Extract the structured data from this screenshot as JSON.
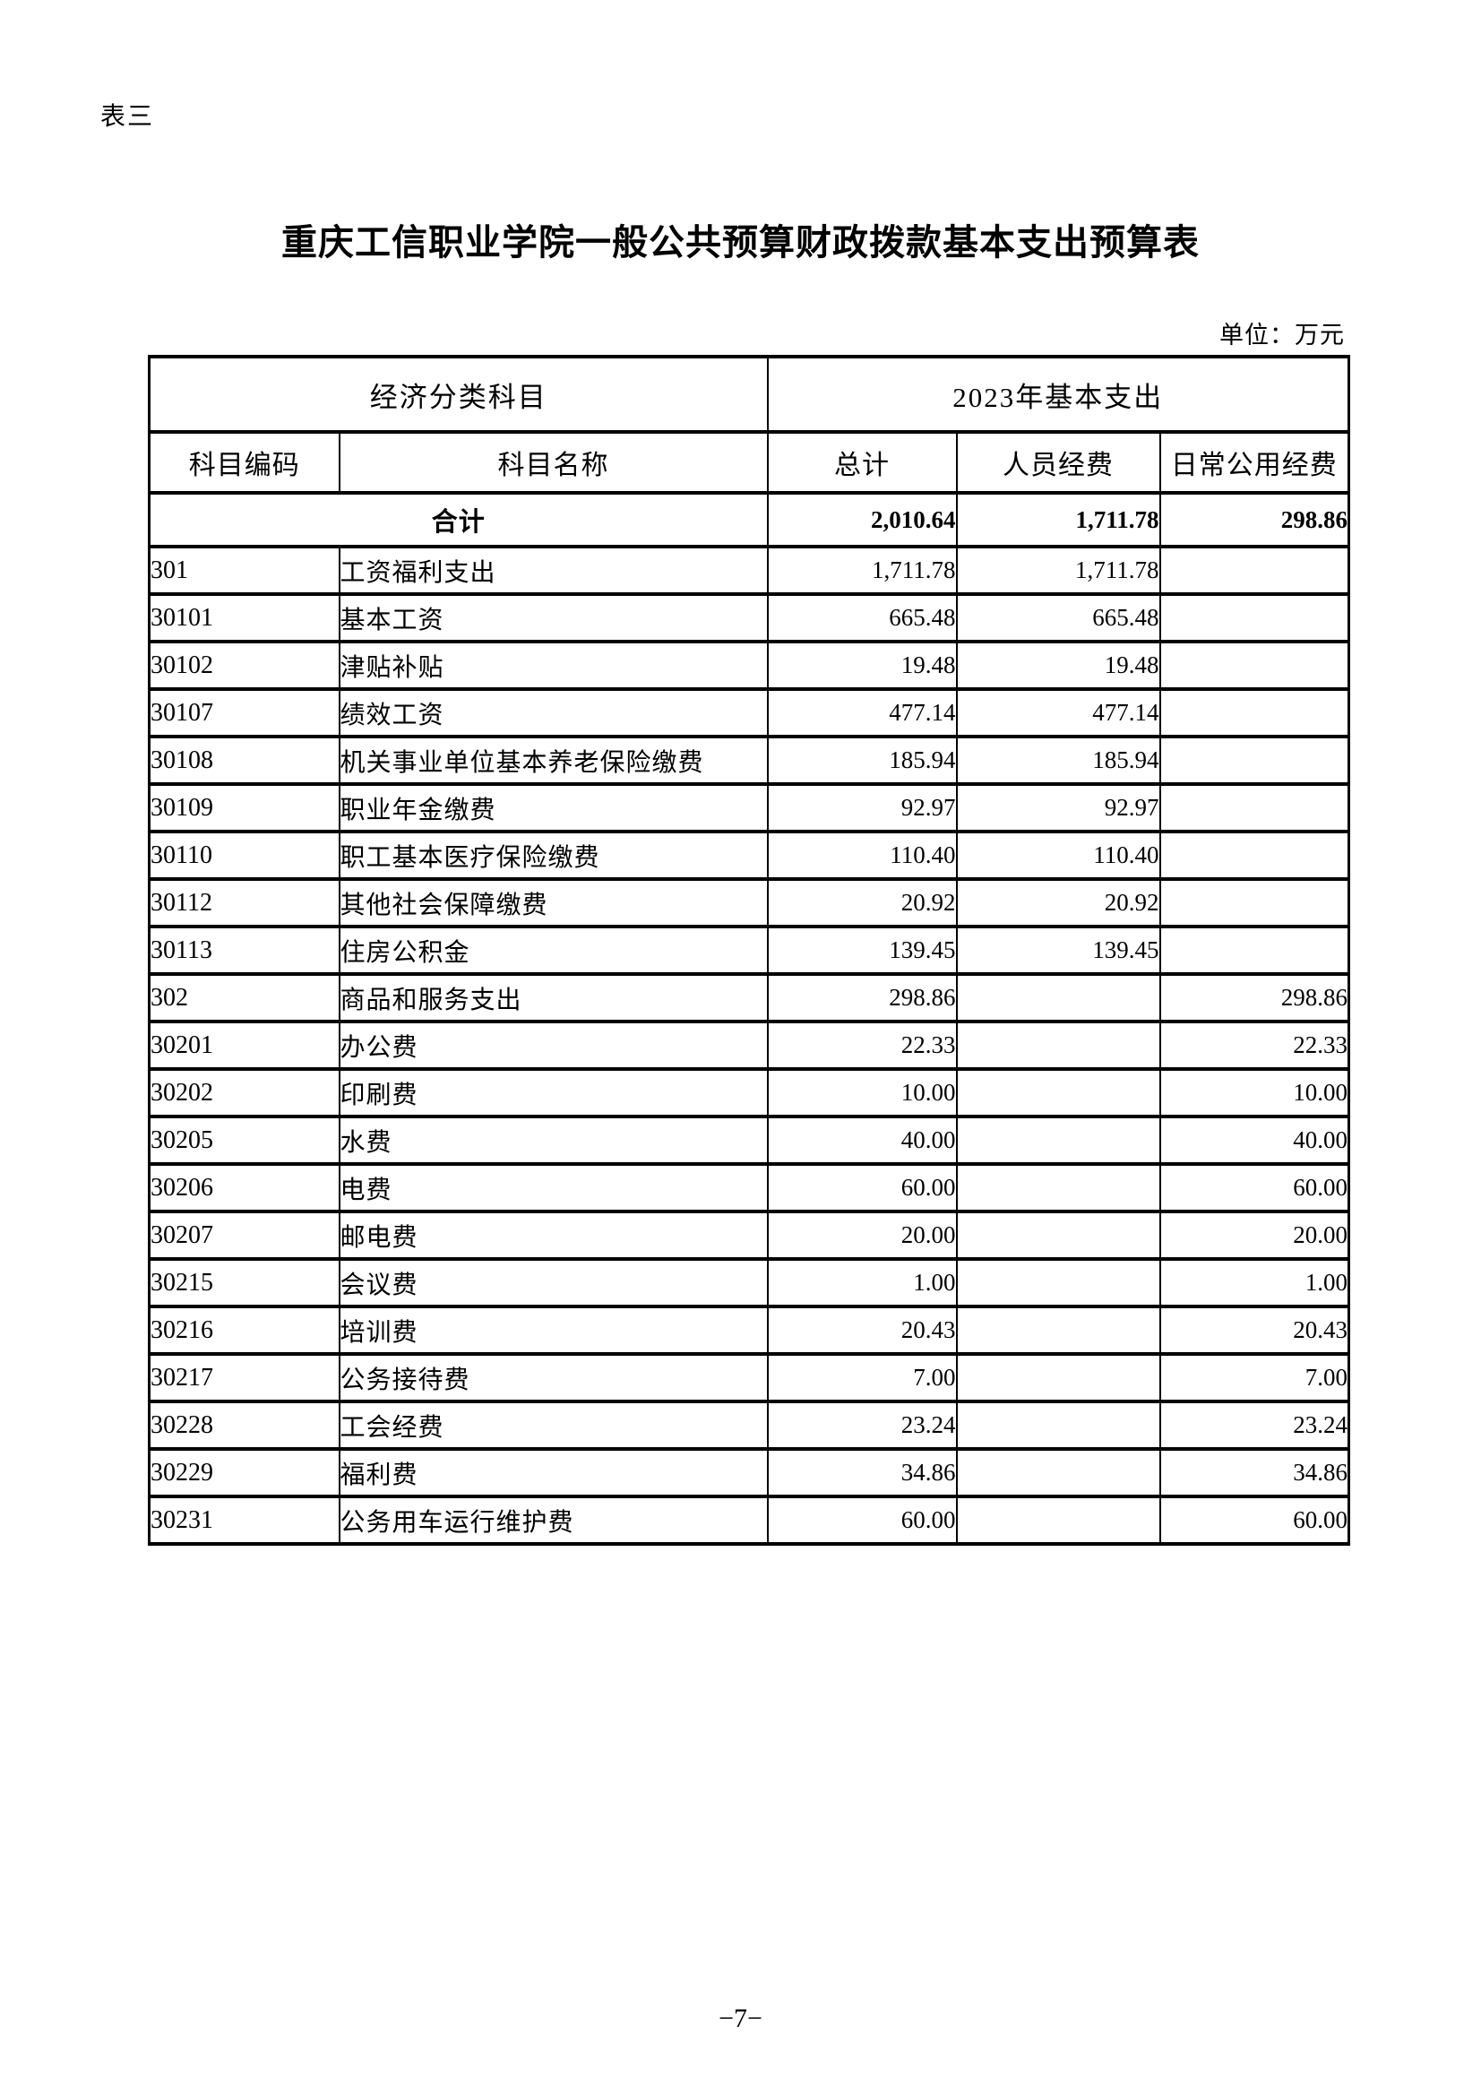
{
  "page": {
    "table_label": "表三",
    "title": "重庆工信职业学院一般公共预算财政拨款基本支出预算表",
    "unit_note": "单位：万元",
    "page_number": "−7−"
  },
  "table": {
    "header_group": {
      "economic_classification": "经济分类科目",
      "basic_expenditure_2023": "2023年基本支出"
    },
    "columns": [
      "科目编码",
      "科目名称",
      "总计",
      "人员经费",
      "日常公用经费"
    ],
    "total_row": {
      "label": "合计",
      "total": "2,010.64",
      "personnel": "1,711.78",
      "daily": "298.86"
    },
    "rows": [
      {
        "code": "301",
        "name": "工资福利支出",
        "total": "1,711.78",
        "personnel": "1,711.78",
        "daily": ""
      },
      {
        "code": "30101",
        "name": "基本工资",
        "total": "665.48",
        "personnel": "665.48",
        "daily": ""
      },
      {
        "code": "30102",
        "name": "津贴补贴",
        "total": "19.48",
        "personnel": "19.48",
        "daily": ""
      },
      {
        "code": "30107",
        "name": "绩效工资",
        "total": "477.14",
        "personnel": "477.14",
        "daily": ""
      },
      {
        "code": "30108",
        "name": "机关事业单位基本养老保险缴费",
        "total": "185.94",
        "personnel": "185.94",
        "daily": ""
      },
      {
        "code": "30109",
        "name": "职业年金缴费",
        "total": "92.97",
        "personnel": "92.97",
        "daily": ""
      },
      {
        "code": "30110",
        "name": "职工基本医疗保险缴费",
        "total": "110.40",
        "personnel": "110.40",
        "daily": ""
      },
      {
        "code": "30112",
        "name": "其他社会保障缴费",
        "total": "20.92",
        "personnel": "20.92",
        "daily": ""
      },
      {
        "code": "30113",
        "name": "住房公积金",
        "total": "139.45",
        "personnel": "139.45",
        "daily": ""
      },
      {
        "code": "302",
        "name": "商品和服务支出",
        "total": "298.86",
        "personnel": "",
        "daily": "298.86"
      },
      {
        "code": "30201",
        "name": "办公费",
        "total": "22.33",
        "personnel": "",
        "daily": "22.33"
      },
      {
        "code": "30202",
        "name": "印刷费",
        "total": "10.00",
        "personnel": "",
        "daily": "10.00"
      },
      {
        "code": "30205",
        "name": "水费",
        "total": "40.00",
        "personnel": "",
        "daily": "40.00"
      },
      {
        "code": "30206",
        "name": "电费",
        "total": "60.00",
        "personnel": "",
        "daily": "60.00"
      },
      {
        "code": "30207",
        "name": "邮电费",
        "total": "20.00",
        "personnel": "",
        "daily": "20.00"
      },
      {
        "code": "30215",
        "name": "会议费",
        "total": "1.00",
        "personnel": "",
        "daily": "1.00"
      },
      {
        "code": "30216",
        "name": "培训费",
        "total": "20.43",
        "personnel": "",
        "daily": "20.43"
      },
      {
        "code": "30217",
        "name": "公务接待费",
        "total": "7.00",
        "personnel": "",
        "daily": "7.00"
      },
      {
        "code": "30228",
        "name": "工会经费",
        "total": "23.24",
        "personnel": "",
        "daily": "23.24"
      },
      {
        "code": "30229",
        "name": "福利费",
        "total": "34.86",
        "personnel": "",
        "daily": "34.86"
      },
      {
        "code": "30231",
        "name": "公务用车运行维护费",
        "total": "60.00",
        "personnel": "",
        "daily": "60.00"
      }
    ]
  }
}
